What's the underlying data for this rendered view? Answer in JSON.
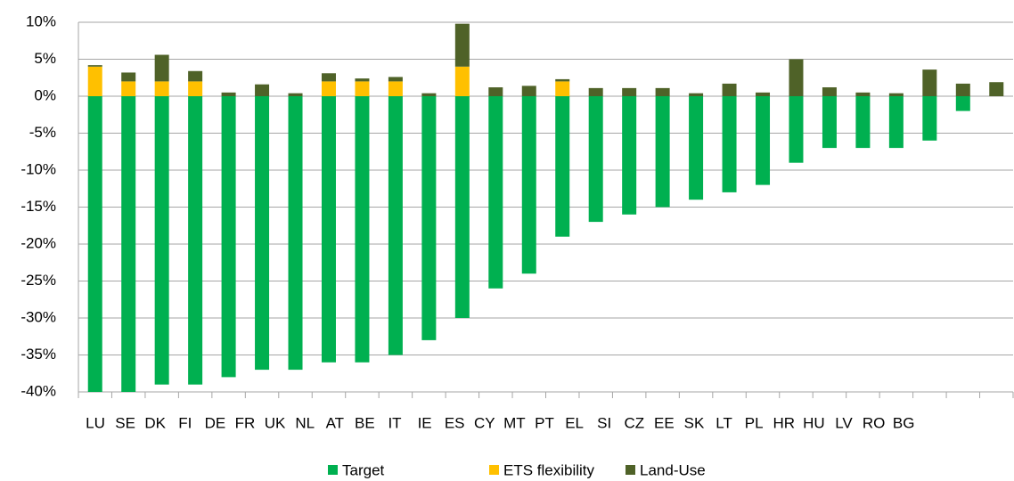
{
  "chart_data": {
    "type": "stacked_bar",
    "categories": [
      "LU",
      "SE",
      "DK",
      "FI",
      "DE",
      "FR",
      "UK",
      "NL",
      "AT",
      "BE",
      "IT",
      "IE",
      "ES",
      "CY",
      "MT",
      "PT",
      "EL",
      "SI",
      "CZ",
      "EE",
      "SK",
      "LT",
      "PL",
      "HR",
      "HU",
      "LV",
      "RO",
      "BG"
    ],
    "series": [
      {
        "name": "Target",
        "color": "#00b050",
        "values": [
          -40,
          -40,
          -39,
          -39,
          -38,
          -37,
          -37,
          -36,
          -36,
          -35,
          -33,
          -30,
          -26,
          -24,
          -19,
          -17,
          -16,
          -15,
          -14,
          -13,
          -12,
          -9,
          -7,
          -7,
          -7,
          -6,
          -2,
          0
        ]
      },
      {
        "name": "ETS flexibility",
        "color": "#ffc000",
        "values": [
          4,
          2,
          2,
          2,
          0,
          0,
          0,
          2,
          2,
          2,
          0,
          4,
          0,
          0,
          2,
          0,
          0,
          0,
          0,
          0,
          0,
          0,
          0,
          0,
          0,
          0,
          0,
          0
        ]
      },
      {
        "name": "Land-Use",
        "color": "#4f6228",
        "values": [
          0.2,
          1.2,
          3.6,
          1.4,
          0.5,
          1.6,
          0.4,
          1.1,
          0.4,
          0.6,
          0.4,
          5.8,
          1.2,
          1.4,
          0.3,
          1.1,
          1.1,
          1.1,
          0.4,
          1.7,
          0.5,
          5,
          1.2,
          0.5,
          0.4,
          3.6,
          1.7,
          1.9
        ]
      }
    ],
    "ylim": [
      -40,
      10
    ],
    "yticks": [
      {
        "value": -40,
        "label": "-40%"
      },
      {
        "value": -35,
        "label": "-35%"
      },
      {
        "value": -30,
        "label": "-30%"
      },
      {
        "value": -25,
        "label": "-25%"
      },
      {
        "value": -20,
        "label": "-20%"
      },
      {
        "value": -15,
        "label": "-15%"
      },
      {
        "value": -10,
        "label": "-10%"
      },
      {
        "value": -5,
        "label": "-5%"
      },
      {
        "value": 0,
        "label": "0%"
      },
      {
        "value": 5,
        "label": "5%"
      },
      {
        "value": 10,
        "label": "10%"
      }
    ],
    "grid": true,
    "legend": "bottom"
  }
}
